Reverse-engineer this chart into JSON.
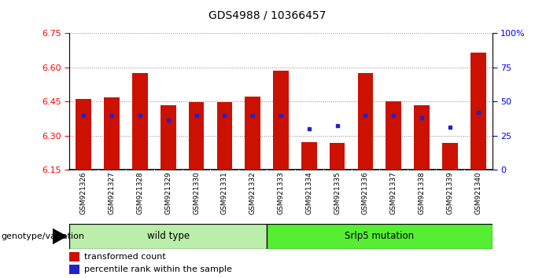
{
  "title": "GDS4988 / 10366457",
  "samples": [
    "GSM921326",
    "GSM921327",
    "GSM921328",
    "GSM921329",
    "GSM921330",
    "GSM921331",
    "GSM921332",
    "GSM921333",
    "GSM921334",
    "GSM921335",
    "GSM921336",
    "GSM921337",
    "GSM921338",
    "GSM921339",
    "GSM921340"
  ],
  "bar_values": [
    6.462,
    6.468,
    6.575,
    6.435,
    6.448,
    6.448,
    6.47,
    6.585,
    6.27,
    6.268,
    6.575,
    6.45,
    6.435,
    6.268,
    6.664
  ],
  "percentile_values": [
    40,
    40,
    40,
    36,
    40,
    40,
    40,
    40,
    30,
    32,
    40,
    40,
    38,
    31,
    42
  ],
  "y_min": 6.15,
  "y_max": 6.75,
  "y_ticks": [
    6.15,
    6.3,
    6.45,
    6.6,
    6.75
  ],
  "right_y_ticks": [
    0,
    25,
    50,
    75,
    100
  ],
  "right_y_tick_labels": [
    "0",
    "25",
    "50",
    "75",
    "100%"
  ],
  "bar_color": "#cc1100",
  "blue_color": "#2222cc",
  "wild_type_count": 7,
  "wild_type_label": "wild type",
  "srlp5_label": "Srlp5 mutation",
  "group_label": "genotype/variation",
  "legend_bar_label": "transformed count",
  "legend_blue_label": "percentile rank within the sample",
  "group_bg_color_wt": "#bbeeaa",
  "group_bg_color_mut": "#55ee33",
  "tick_area_bg": "#cccccc",
  "title_fontsize": 10
}
